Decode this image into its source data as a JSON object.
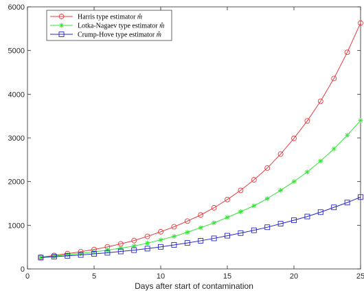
{
  "chart_data": {
    "type": "line",
    "title": "",
    "xlabel": "Days after start of contamination",
    "ylabel": "",
    "xlim": [
      0,
      25
    ],
    "ylim": [
      0,
      6000
    ],
    "x_ticks": [
      0,
      5,
      10,
      15,
      20,
      25
    ],
    "y_ticks": [
      0,
      1000,
      2000,
      3000,
      4000,
      5000,
      6000
    ],
    "grid": false,
    "legend_position": "top-left",
    "x": [
      1,
      2,
      3,
      4,
      5,
      6,
      7,
      8,
      9,
      10,
      11,
      12,
      13,
      14,
      15,
      16,
      17,
      18,
      19,
      20,
      21,
      22,
      23,
      24,
      25
    ],
    "series": [
      {
        "name": "Harris type estimator",
        "name_math": "m̂",
        "color": "#e8393f",
        "marker": "circle",
        "values": [
          270,
          310,
          350,
          395,
          445,
          505,
          575,
          650,
          745,
          850,
          965,
          1095,
          1235,
          1400,
          1590,
          1800,
          2040,
          2310,
          2630,
          2990,
          3390,
          3840,
          4360,
          4960,
          5630
        ]
      },
      {
        "name": "Lotka-Nagaev type estimator",
        "name_math": "m̂",
        "color": "#2fe52f",
        "marker": "star",
        "values": [
          265,
          295,
          325,
          355,
          390,
          430,
          475,
          525,
          590,
          665,
          745,
          840,
          945,
          1055,
          1180,
          1310,
          1445,
          1610,
          1800,
          2000,
          2220,
          2470,
          2750,
          3060,
          3400
        ]
      },
      {
        "name": "Crump-Hove type estimator",
        "name_math": "m̂",
        "color": "#2424c8",
        "marker": "square",
        "values": [
          260,
          280,
          300,
          320,
          345,
          370,
          400,
          430,
          465,
          505,
          550,
          595,
          645,
          700,
          760,
          820,
          885,
          955,
          1035,
          1115,
          1200,
          1300,
          1410,
          1520,
          1645
        ]
      }
    ]
  }
}
